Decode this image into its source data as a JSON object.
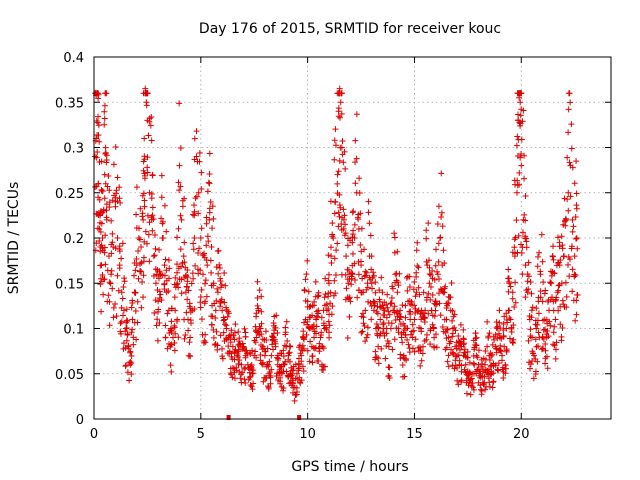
{
  "chart_data": {
    "type": "scatter",
    "title": "Day 176 of 2015, SRMTID for receiver kouc",
    "xlabel": "GPS time / hours",
    "ylabel": "SRMTID / TECUs",
    "xlim": [
      0,
      24.2
    ],
    "ylim": [
      0,
      0.4
    ],
    "xticks": [
      0,
      5,
      10,
      15,
      20
    ],
    "yticks": [
      0,
      0.05,
      0.1,
      0.15,
      0.2,
      0.25,
      0.3,
      0.35,
      0.4
    ],
    "ytick_labels": [
      "0",
      "0.05",
      "0.1",
      "0.15",
      "0.2",
      "0.25",
      "0.3",
      "0.35",
      "0.4"
    ],
    "grid": true,
    "marker": "+",
    "color": "#e00000",
    "series": [
      {
        "name": "SRMTID",
        "points": [
          [
            0.05,
            0.29
          ],
          [
            0.1,
            0.31
          ],
          [
            0.15,
            0.295
          ],
          [
            0.2,
            0.26
          ],
          [
            0.25,
            0.21
          ],
          [
            0.3,
            0.19
          ],
          [
            0.35,
            0.17
          ],
          [
            0.4,
            0.2
          ],
          [
            0.45,
            0.23
          ],
          [
            0.5,
            0.27
          ],
          [
            0.55,
            0.26
          ],
          [
            0.6,
            0.22
          ],
          [
            0.7,
            0.18
          ],
          [
            0.8,
            0.16
          ],
          [
            0.9,
            0.19
          ],
          [
            1.0,
            0.24
          ],
          [
            1.1,
            0.2
          ],
          [
            1.2,
            0.17
          ],
          [
            1.3,
            0.14
          ],
          [
            1.4,
            0.12
          ],
          [
            1.5,
            0.1
          ],
          [
            1.6,
            0.08
          ],
          [
            1.7,
            0.06
          ],
          [
            1.8,
            0.11
          ],
          [
            1.9,
            0.14
          ],
          [
            2.0,
            0.17
          ],
          [
            2.1,
            0.2
          ],
          [
            2.2,
            0.19
          ],
          [
            2.3,
            0.22
          ],
          [
            2.35,
            0.31
          ],
          [
            2.4,
            0.365
          ],
          [
            2.45,
            0.35
          ],
          [
            2.5,
            0.33
          ],
          [
            2.6,
            0.25
          ],
          [
            2.7,
            0.22
          ],
          [
            2.8,
            0.18
          ],
          [
            2.9,
            0.15
          ],
          [
            3.0,
            0.13
          ],
          [
            3.1,
            0.16
          ],
          [
            3.2,
            0.2
          ],
          [
            3.3,
            0.17
          ],
          [
            3.4,
            0.14
          ],
          [
            3.5,
            0.12
          ],
          [
            3.6,
            0.1
          ],
          [
            3.7,
            0.09
          ],
          [
            3.8,
            0.12
          ],
          [
            3.9,
            0.15
          ],
          [
            4.0,
            0.28
          ],
          [
            4.1,
            0.22
          ],
          [
            4.2,
            0.18
          ],
          [
            4.3,
            0.14
          ],
          [
            4.4,
            0.11
          ],
          [
            4.5,
            0.09
          ],
          [
            4.6,
            0.12
          ],
          [
            4.7,
            0.2
          ],
          [
            4.8,
            0.29
          ],
          [
            4.9,
            0.25
          ],
          [
            5.0,
            0.2
          ],
          [
            5.1,
            0.16
          ],
          [
            5.2,
            0.13
          ],
          [
            5.3,
            0.17
          ],
          [
            5.4,
            0.22
          ],
          [
            5.5,
            0.19
          ],
          [
            5.6,
            0.15
          ],
          [
            5.7,
            0.12
          ],
          [
            5.8,
            0.14
          ],
          [
            5.9,
            0.13
          ],
          [
            6.0,
            0.12
          ],
          [
            6.1,
            0.11
          ],
          [
            6.2,
            0.1
          ],
          [
            6.3,
            0.09
          ],
          [
            6.4,
            0.085
          ],
          [
            6.5,
            0.08
          ],
          [
            6.6,
            0.075
          ],
          [
            6.7,
            0.07
          ],
          [
            6.8,
            0.065
          ],
          [
            6.9,
            0.06
          ],
          [
            7.0,
            0.08
          ],
          [
            7.1,
            0.07
          ],
          [
            7.2,
            0.06
          ],
          [
            7.3,
            0.055
          ],
          [
            7.4,
            0.05
          ],
          [
            7.5,
            0.07
          ],
          [
            7.6,
            0.09
          ],
          [
            7.7,
            0.12
          ],
          [
            7.8,
            0.1
          ],
          [
            7.9,
            0.08
          ],
          [
            8.0,
            0.07
          ],
          [
            8.1,
            0.06
          ],
          [
            8.2,
            0.05
          ],
          [
            8.3,
            0.07
          ],
          [
            8.4,
            0.09
          ],
          [
            8.5,
            0.08
          ],
          [
            8.6,
            0.06
          ],
          [
            8.7,
            0.055
          ],
          [
            8.8,
            0.05
          ],
          [
            8.9,
            0.06
          ],
          [
            9.0,
            0.08
          ],
          [
            9.1,
            0.07
          ],
          [
            9.2,
            0.05
          ],
          [
            9.3,
            0.04
          ],
          [
            9.4,
            0.035
          ],
          [
            9.5,
            0.05
          ],
          [
            9.6,
            0.06
          ],
          [
            9.7,
            0.07
          ],
          [
            9.8,
            0.09
          ],
          [
            9.9,
            0.11
          ],
          [
            10.0,
            0.13
          ],
          [
            10.1,
            0.1
          ],
          [
            10.2,
            0.08
          ],
          [
            10.3,
            0.09
          ],
          [
            10.4,
            0.11
          ],
          [
            10.5,
            0.12
          ],
          [
            10.6,
            0.09
          ],
          [
            10.7,
            0.08
          ],
          [
            10.8,
            0.1
          ],
          [
            10.9,
            0.12
          ],
          [
            11.0,
            0.15
          ],
          [
            11.1,
            0.18
          ],
          [
            11.2,
            0.2
          ],
          [
            11.3,
            0.24
          ],
          [
            11.4,
            0.27
          ],
          [
            11.45,
            0.34
          ],
          [
            11.5,
            0.365
          ],
          [
            11.55,
            0.35
          ],
          [
            11.6,
            0.3
          ],
          [
            11.7,
            0.22
          ],
          [
            11.8,
            0.18
          ],
          [
            11.9,
            0.15
          ],
          [
            12.0,
            0.13
          ],
          [
            12.1,
            0.16
          ],
          [
            12.2,
            0.2
          ],
          [
            12.3,
            0.25
          ],
          [
            12.4,
            0.21
          ],
          [
            12.5,
            0.17
          ],
          [
            12.6,
            0.14
          ],
          [
            12.7,
            0.12
          ],
          [
            12.8,
            0.15
          ],
          [
            12.9,
            0.18
          ],
          [
            13.0,
            0.15
          ],
          [
            13.1,
            0.12
          ],
          [
            13.2,
            0.1
          ],
          [
            13.3,
            0.08
          ],
          [
            13.4,
            0.11
          ],
          [
            13.5,
            0.14
          ],
          [
            13.6,
            0.12
          ],
          [
            13.7,
            0.1
          ],
          [
            13.8,
            0.08
          ],
          [
            13.9,
            0.1
          ],
          [
            14.0,
            0.12
          ],
          [
            14.1,
            0.16
          ],
          [
            14.2,
            0.14
          ],
          [
            14.3,
            0.11
          ],
          [
            14.4,
            0.09
          ],
          [
            14.5,
            0.07
          ],
          [
            14.6,
            0.1
          ],
          [
            14.7,
            0.13
          ],
          [
            14.8,
            0.11
          ],
          [
            14.9,
            0.09
          ],
          [
            15.0,
            0.11
          ],
          [
            15.1,
            0.14
          ],
          [
            15.2,
            0.12
          ],
          [
            15.3,
            0.1
          ],
          [
            15.4,
            0.08
          ],
          [
            15.5,
            0.12
          ],
          [
            15.6,
            0.17
          ],
          [
            15.7,
            0.15
          ],
          [
            15.8,
            0.12
          ],
          [
            15.9,
            0.1
          ],
          [
            16.0,
            0.13
          ],
          [
            16.1,
            0.16
          ],
          [
            16.2,
            0.2
          ],
          [
            16.3,
            0.17
          ],
          [
            16.4,
            0.14
          ],
          [
            16.5,
            0.11
          ],
          [
            16.6,
            0.09
          ],
          [
            16.7,
            0.12
          ],
          [
            16.8,
            0.1
          ],
          [
            16.9,
            0.08
          ],
          [
            17.0,
            0.07
          ],
          [
            17.1,
            0.06
          ],
          [
            17.2,
            0.08
          ],
          [
            17.3,
            0.07
          ],
          [
            17.4,
            0.06
          ],
          [
            17.5,
            0.05
          ],
          [
            17.6,
            0.04
          ],
          [
            17.7,
            0.05
          ],
          [
            17.8,
            0.06
          ],
          [
            17.9,
            0.07
          ],
          [
            18.0,
            0.06
          ],
          [
            18.1,
            0.05
          ],
          [
            18.2,
            0.04
          ],
          [
            18.3,
            0.06
          ],
          [
            18.4,
            0.08
          ],
          [
            18.5,
            0.07
          ],
          [
            18.6,
            0.05
          ],
          [
            18.7,
            0.06
          ],
          [
            18.8,
            0.08
          ],
          [
            18.9,
            0.1
          ],
          [
            19.0,
            0.09
          ],
          [
            19.1,
            0.07
          ],
          [
            19.2,
            0.08
          ],
          [
            19.3,
            0.1
          ],
          [
            19.4,
            0.12
          ],
          [
            19.5,
            0.11
          ],
          [
            19.6,
            0.14
          ],
          [
            19.7,
            0.18
          ],
          [
            19.8,
            0.25
          ],
          [
            19.85,
            0.33
          ],
          [
            19.9,
            0.355
          ],
          [
            19.95,
            0.35
          ],
          [
            20.0,
            0.28
          ],
          [
            20.1,
            0.22
          ],
          [
            20.2,
            0.17
          ],
          [
            20.3,
            0.14
          ],
          [
            20.4,
            0.11
          ],
          [
            20.5,
            0.09
          ],
          [
            20.6,
            0.07
          ],
          [
            20.7,
            0.1
          ],
          [
            20.8,
            0.13
          ],
          [
            20.9,
            0.16
          ],
          [
            21.0,
            0.13
          ],
          [
            21.1,
            0.11
          ],
          [
            21.2,
            0.09
          ],
          [
            21.3,
            0.12
          ],
          [
            21.4,
            0.15
          ],
          [
            21.5,
            0.13
          ],
          [
            21.6,
            0.11
          ],
          [
            21.7,
            0.14
          ],
          [
            21.8,
            0.17
          ],
          [
            21.9,
            0.15
          ],
          [
            22.0,
            0.18
          ],
          [
            22.1,
            0.22
          ],
          [
            22.2,
            0.25
          ],
          [
            22.3,
            0.28
          ],
          [
            22.4,
            0.22
          ],
          [
            22.5,
            0.18
          ],
          [
            22.6,
            0.2
          ]
        ]
      }
    ],
    "outliers_at_zero": [
      6.3,
      9.6
    ]
  }
}
